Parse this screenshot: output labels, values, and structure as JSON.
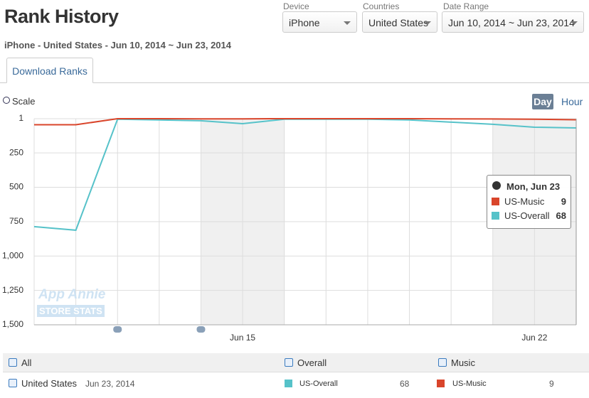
{
  "header": {
    "title": "Rank History",
    "subtitle": "iPhone - United States - Jun 10, 2014 ~ Jun 23, 2014"
  },
  "filters": [
    {
      "label": "Device",
      "value": "iPhone"
    },
    {
      "label": "Countries",
      "value": "United States"
    },
    {
      "label": "Date Range",
      "value": "Jun 10, 2014 ~ Jun 23, 2014"
    }
  ],
  "tabs": [
    "Download Ranks"
  ],
  "controls": {
    "scale": "Scale",
    "day": "Day",
    "hour": "Hour"
  },
  "watermark": [
    "App Annie",
    "STORE STATS"
  ],
  "chart_data": {
    "type": "line",
    "categories": [
      null,
      null,
      null,
      null,
      null,
      "Jun 15",
      null,
      null,
      null,
      null,
      null,
      null,
      "Jun 22",
      null
    ],
    "series": [
      {
        "name": "US-Music",
        "color": "#d9452b",
        "values": [
          45,
          45,
          1,
          1,
          2,
          2,
          1,
          1,
          1,
          1,
          2,
          3,
          5,
          9
        ]
      },
      {
        "name": "US-Overall",
        "color": "#56c2c9",
        "values": [
          786,
          812,
          5,
          10,
          16,
          37,
          5,
          5,
          5,
          10,
          26,
          42,
          63,
          68
        ]
      }
    ],
    "ylim": [
      1500,
      1
    ],
    "yticks": [
      1,
      250,
      500,
      750,
      {
        "value": 1000,
        "label": "1,000"
      },
      {
        "value": 1250,
        "label": "1,250"
      },
      {
        "value": 1500,
        "label": "1,500"
      }
    ],
    "grid": true
  },
  "tooltip": {
    "title": "Mon, Jun 23",
    "rows": [
      {
        "name": "US-Music",
        "value": 9
      },
      {
        "name": "US-Overall",
        "value": 68
      }
    ]
  },
  "table": {
    "header": [
      "All",
      "Overall",
      "Music"
    ],
    "row": {
      "country": "United States",
      "date": "Jun 23, 2014",
      "overall": {
        "name": "US-Overall",
        "value": 68
      },
      "music": {
        "name": "US-Music",
        "value": 9
      }
    }
  }
}
